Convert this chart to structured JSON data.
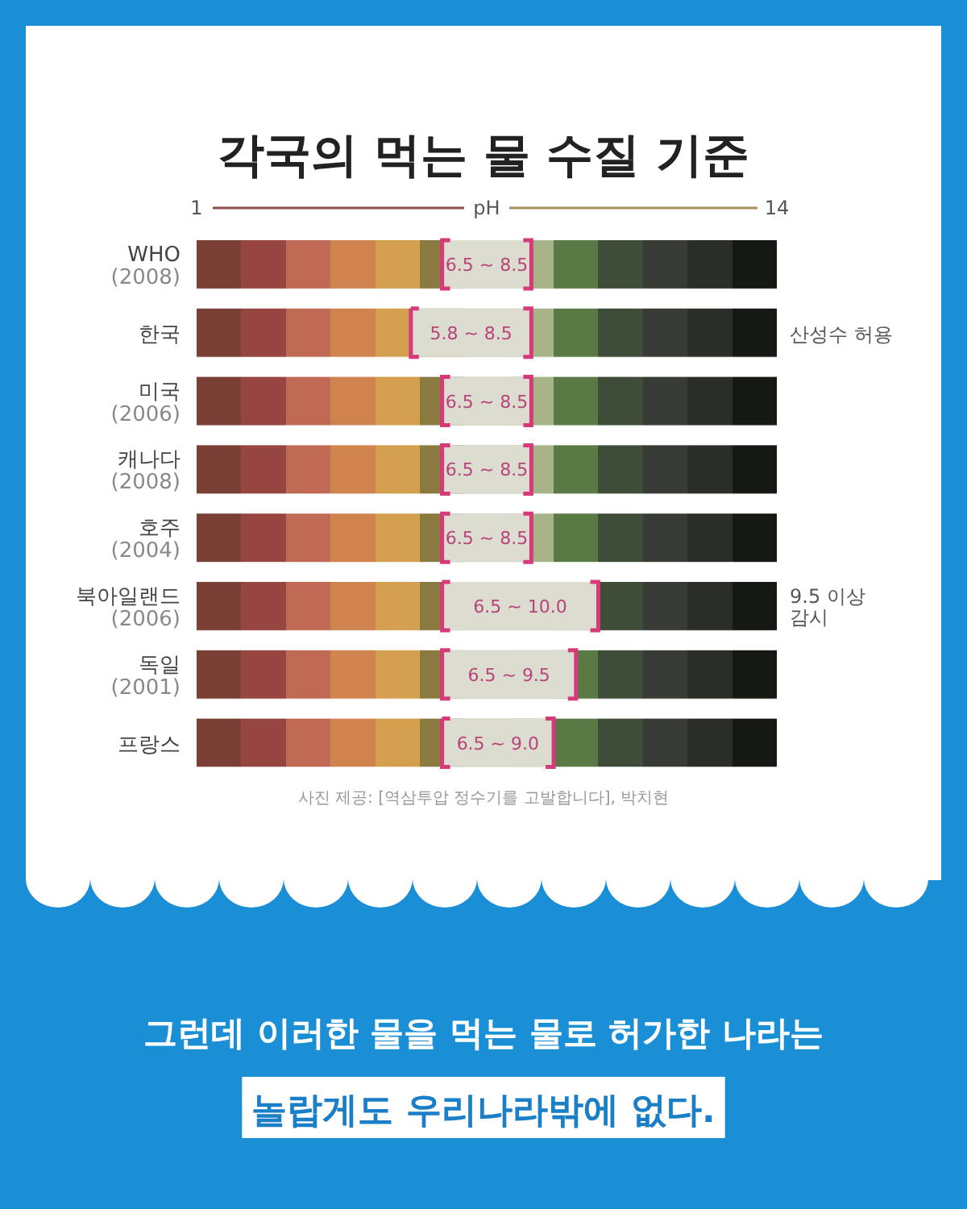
{
  "chart_data": {
    "type": "bar",
    "orientation": "horizontal",
    "title": "각국의 먹는 물 수질 기준",
    "xlabel": "pH",
    "xlim": [
      1,
      14
    ],
    "xticks": [
      1,
      14
    ],
    "categories": [
      "WHO\n(2008)",
      "한국",
      "미국\n(2006)",
      "캐나다\n(2008)",
      "호주\n(2004)",
      "북아일랜드\n(2006)",
      "독일\n(2001)",
      "프랑스"
    ],
    "base": [
      6.5,
      5.8,
      6.5,
      6.5,
      6.5,
      6.5,
      6.5,
      6.5
    ],
    "values": [
      2.0,
      2.7,
      2.0,
      2.0,
      2.0,
      3.5,
      3.0,
      2.5
    ],
    "color": "#dcddd0",
    "annotations": [
      "6.5 ~ 8.5",
      "5.8 ~ 8.5",
      "6.5 ~ 8.5",
      "6.5 ~ 8.5",
      "6.5 ~ 8.5",
      "6.5 ~ 10.0",
      "6.5 ~ 9.5",
      "6.5 ~ 9.0",
      "산성수 허용",
      "9.5 이상\n감시",
      "사진 제공: [역삼투압 정수기를 고발합니다], 박치현",
      "그런데 이러한 물을 먹는 물로 허가한 나라는",
      "놀랍게도 우리나라밖에 없다."
    ]
  }
}
